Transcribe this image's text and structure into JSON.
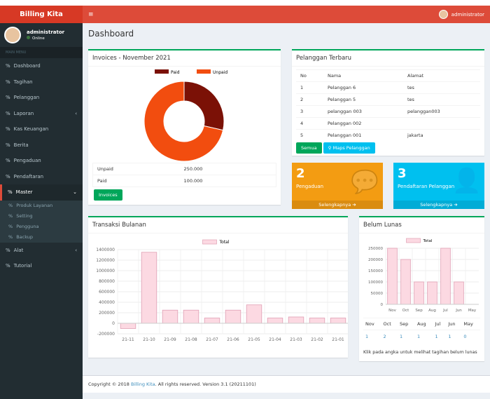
{
  "app": {
    "title": "Billing Kita",
    "menu_icon": "hamburger-icon",
    "user": "administrator"
  },
  "sidebar": {
    "user": "administrator",
    "status": "Online",
    "header": "MAIN MENU",
    "items": [
      {
        "label": "Dashboard"
      },
      {
        "label": "Tagihan"
      },
      {
        "label": "Pelanggan"
      },
      {
        "label": "Laporan",
        "caret": "‹"
      },
      {
        "label": "Kas Keuangan"
      },
      {
        "label": "Berita"
      },
      {
        "label": "Pengaduan"
      },
      {
        "label": "Pendaftaran"
      },
      {
        "label": "Master",
        "caret": "⌄"
      }
    ],
    "sub": [
      {
        "label": "Produk Layanan"
      },
      {
        "label": "Setting"
      },
      {
        "label": "Pengguna"
      },
      {
        "label": "Backup"
      }
    ],
    "items2": [
      {
        "label": "Alat",
        "caret": "‹"
      },
      {
        "label": "Tutorial"
      }
    ]
  },
  "page": {
    "title": "Dashboard"
  },
  "invoices": {
    "title": "Invoices - November 2021",
    "rows": [
      {
        "label": "Unpaid",
        "value": "250.000"
      },
      {
        "label": "Paid",
        "value": "100.000"
      }
    ],
    "button": "Invoices"
  },
  "pelanggan": {
    "title": "Pelanggan Terbaru",
    "headers": [
      "No",
      "Nama",
      "Alamat"
    ],
    "rows": [
      [
        "1",
        "Pelanggan 6",
        "tes"
      ],
      [
        "2",
        "Pelanggan 5",
        "tes"
      ],
      [
        "3",
        "pelanggan 003",
        "pelanggan003"
      ],
      [
        "4",
        "Pelanggan 002",
        ""
      ],
      [
        "5",
        "Pelanggan 001",
        "jakarta"
      ]
    ],
    "btn_all": "Semua",
    "btn_maps": "Maps Pelanggan"
  },
  "stats": [
    {
      "number": "2",
      "label": "Pengaduan",
      "more": "Selengkapnya",
      "color": "#f39c12"
    },
    {
      "number": "3",
      "label": "Pendaftaran Pelanggan",
      "more": "Selengkapnya",
      "color": "#00c0ef"
    }
  ],
  "transaksi": {
    "title": "Transaksi Bulanan"
  },
  "belum": {
    "title": "Belum Lunas",
    "months": [
      "Nov",
      "Oct",
      "Sep",
      "Aug",
      "Jul",
      "Jun",
      "May"
    ],
    "counts": [
      "1",
      "2",
      "1",
      "1",
      "1",
      "1",
      "0"
    ],
    "note": "Klik pada angka untuk melihat tagihan belum lunas"
  },
  "footer": {
    "prefix": "Copyright © 2018 ",
    "link": "Billing Kita",
    "suffix": ". All rights reserved. Version 3.1 (20211101)"
  },
  "chart_data": [
    {
      "type": "pie",
      "title": "",
      "categories": [
        "Paid",
        "Unpaid"
      ],
      "values": [
        100000,
        250000
      ],
      "colors": [
        "#7b1106",
        "#f24d0f"
      ],
      "legend": "top",
      "donut": true
    },
    {
      "type": "bar",
      "series": [
        {
          "name": "Total",
          "values": [
            -100000,
            1350000,
            250000,
            250000,
            100000,
            250000,
            350000,
            100000,
            120000,
            100000,
            100000
          ]
        }
      ],
      "categories": [
        "21-11",
        "21-10",
        "21-09",
        "21-08",
        "21-07",
        "21-06",
        "21-05",
        "21-04",
        "21-03",
        "21-02",
        "21-01"
      ],
      "ylim": [
        -200000,
        1400000
      ],
      "yticks": [
        -200000,
        0,
        200000,
        400000,
        600000,
        800000,
        1000000,
        1200000,
        1400000
      ],
      "legend": "top",
      "grid": true
    },
    {
      "type": "bar",
      "series": [
        {
          "name": "Total",
          "values": [
            250000,
            200000,
            100000,
            100000,
            250000,
            100000,
            0
          ]
        }
      ],
      "categories": [
        "Nov",
        "Oct",
        "Sep",
        "Aug",
        "Jul",
        "Jun",
        "May"
      ],
      "ylim": [
        0,
        250000
      ],
      "yticks": [
        0,
        50000,
        100000,
        150000,
        200000,
        250000
      ],
      "legend": "top",
      "grid": true
    }
  ]
}
